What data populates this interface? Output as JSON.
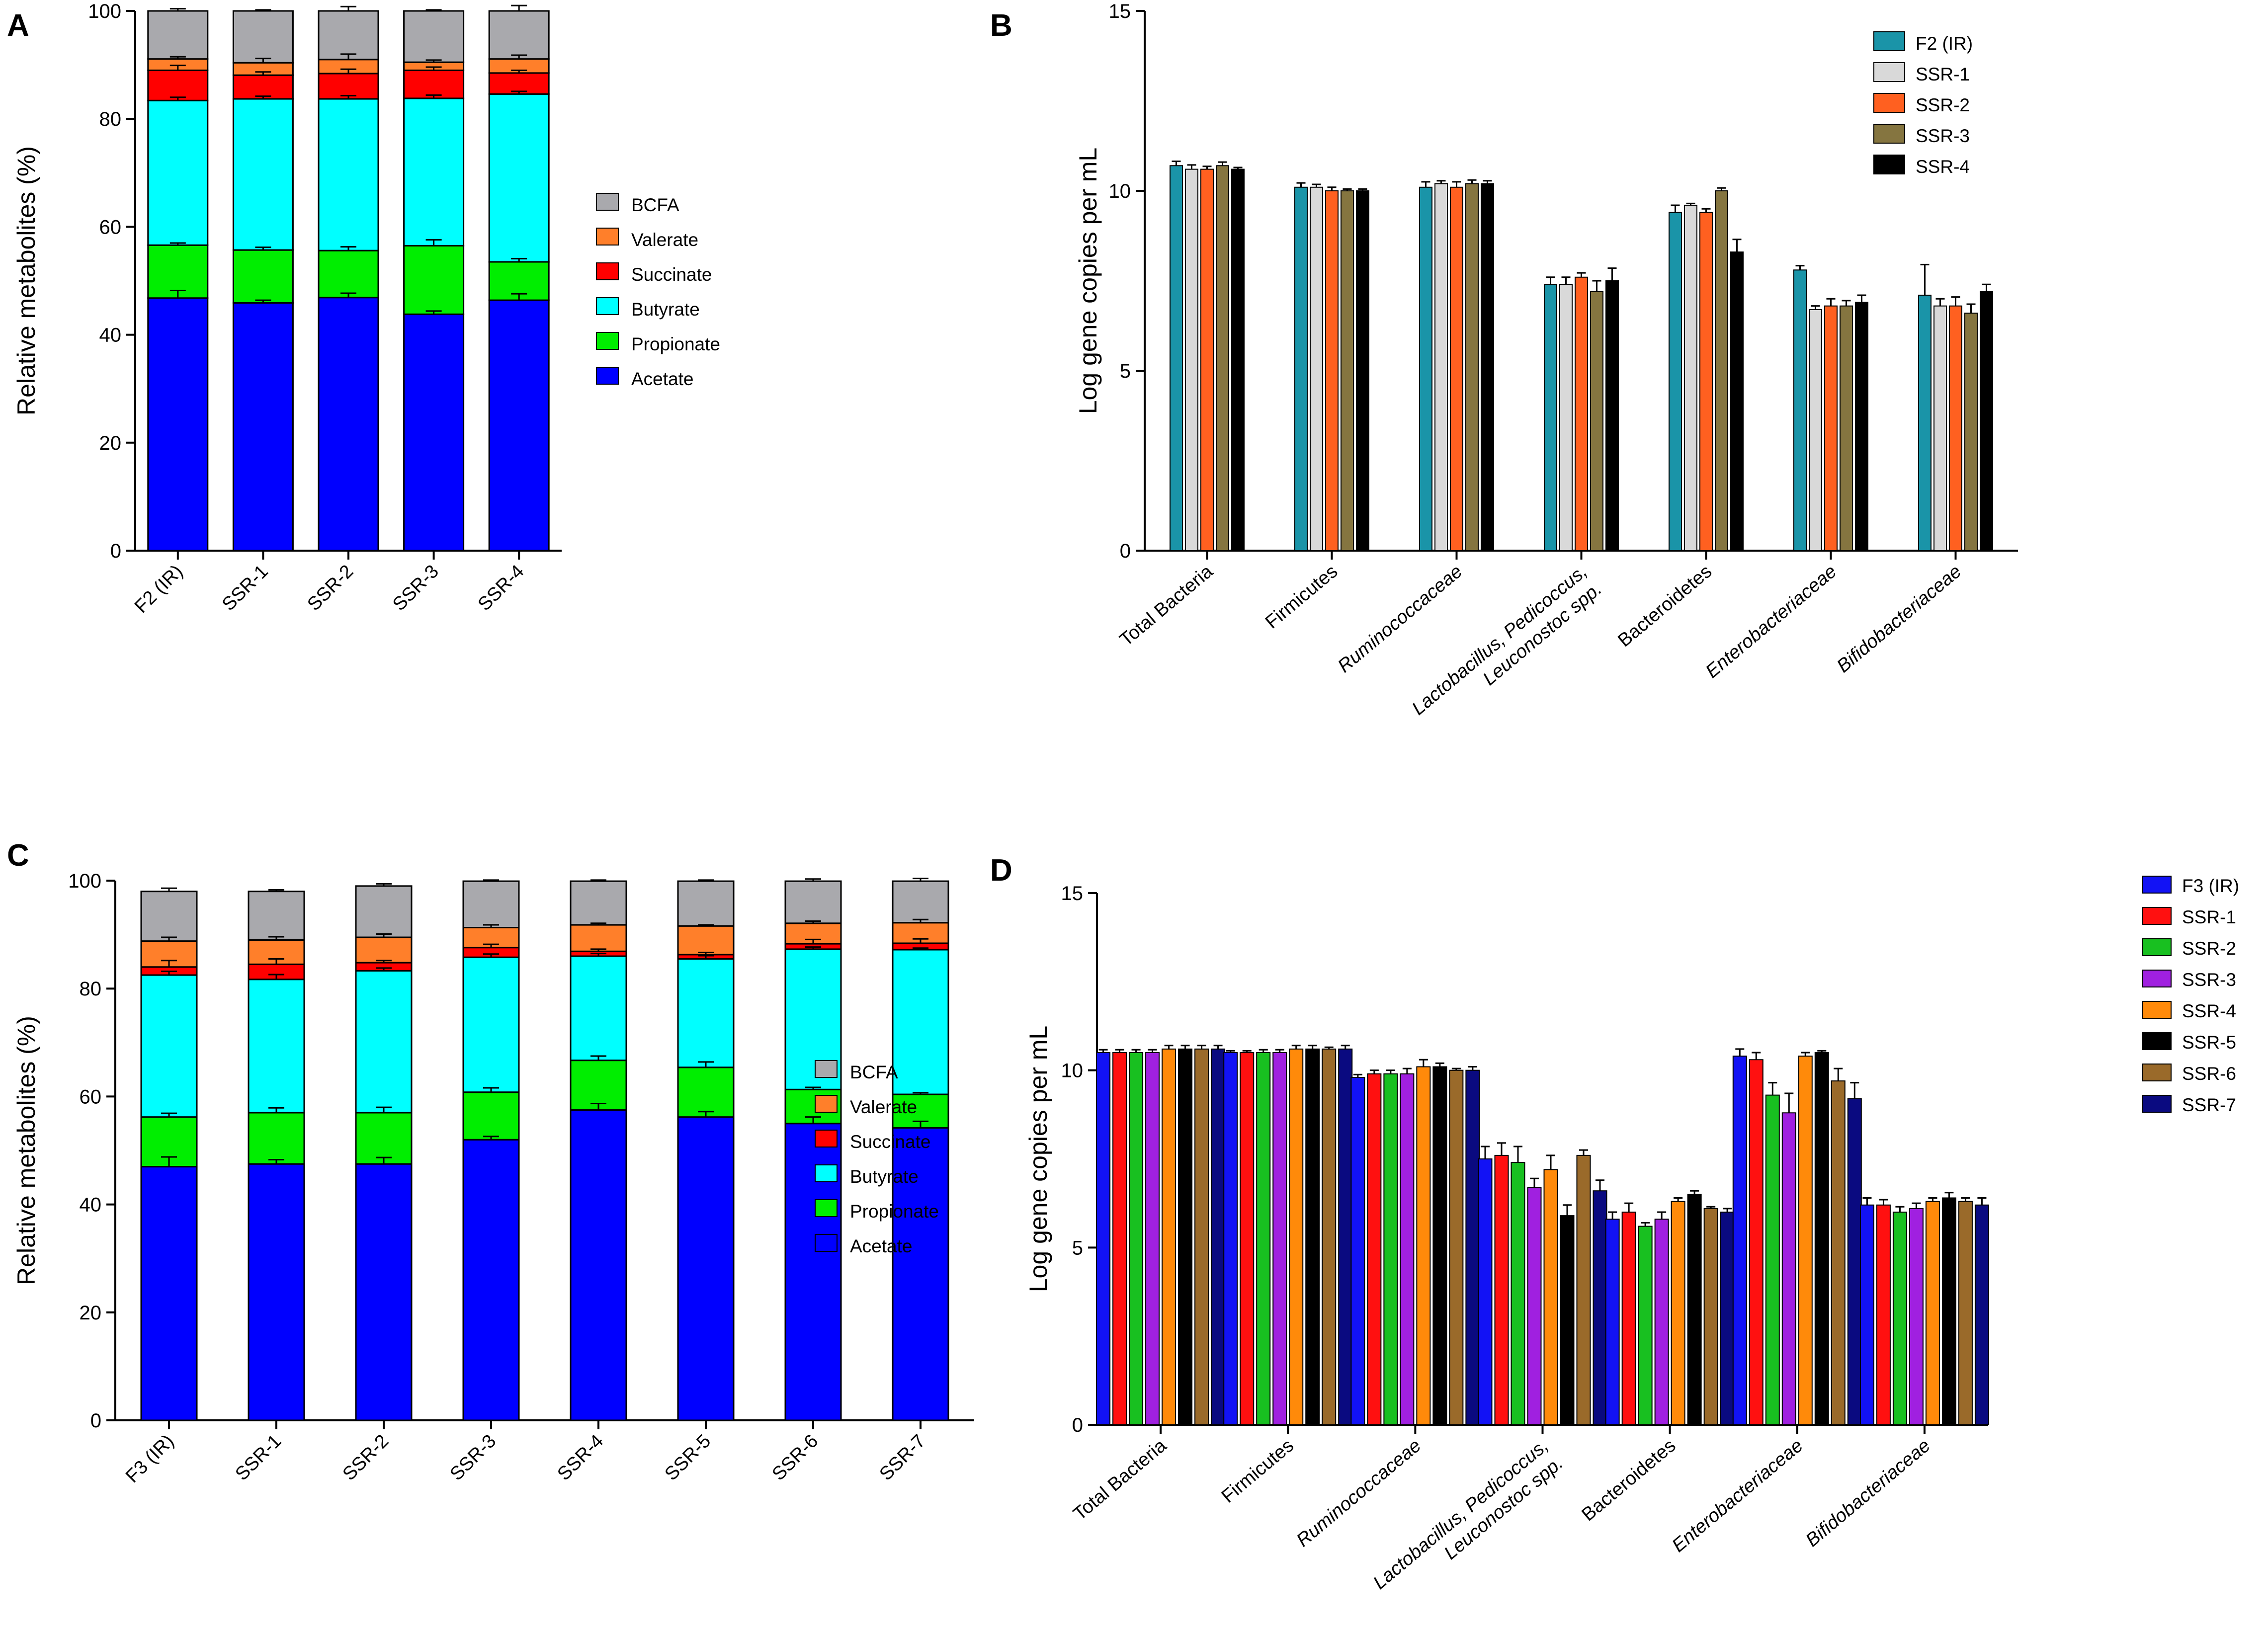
{
  "chart_data": [
    {
      "id": "A",
      "type": "stacked_bar",
      "panel_label": "A",
      "title": "",
      "ylabel": "Relative metabolites (%)",
      "xlabel": "",
      "ylim": [
        0,
        100
      ],
      "yticks": [
        0,
        20,
        40,
        60,
        80,
        100
      ],
      "grid": false,
      "legend_position": "right",
      "categories": [
        "F2 (IR)",
        "SSR-1",
        "SSR-2",
        "SSR-3",
        "SSR-4"
      ],
      "series": [
        {
          "name": "Acetate",
          "color": "#0000FF",
          "values": [
            46.8,
            45.9,
            46.9,
            43.8,
            46.4
          ],
          "errors": [
            1.4,
            0.5,
            0.8,
            0.6,
            1.2
          ]
        },
        {
          "name": "Propionate",
          "color": "#00EE00",
          "values": [
            9.8,
            9.8,
            8.7,
            12.7,
            7.1
          ],
          "errors": [
            0.4,
            0.5,
            0.7,
            1.1,
            0.6
          ]
        },
        {
          "name": "Butyrate",
          "color": "#00FFFF",
          "values": [
            26.8,
            28.0,
            28.1,
            27.3,
            31.1
          ],
          "errors": [
            0.6,
            0.5,
            0.6,
            0.6,
            0.5
          ]
        },
        {
          "name": "Succinate",
          "color": "#FF0000",
          "values": [
            5.6,
            4.4,
            4.7,
            5.2,
            3.9
          ],
          "errors": [
            0.9,
            0.6,
            0.8,
            0.6,
            0.5
          ]
        },
        {
          "name": "Valerate",
          "color": "#FF7F2A",
          "values": [
            2.1,
            2.3,
            2.6,
            1.5,
            2.6
          ],
          "errors": [
            0.4,
            0.8,
            1.0,
            0.4,
            0.7
          ]
        },
        {
          "name": "BCFA",
          "color": "#A9A9AD",
          "values": [
            8.9,
            9.6,
            9.0,
            9.5,
            8.9
          ],
          "errors": [
            0.4,
            0.2,
            0.8,
            0.2,
            1.0
          ]
        }
      ],
      "legend_order": [
        "BCFA",
        "Valerate",
        "Succinate",
        "Butyrate",
        "Propionate",
        "Acetate"
      ]
    },
    {
      "id": "B",
      "type": "bar",
      "panel_label": "B",
      "title": "",
      "ylabel": "Log gene copies per mL",
      "xlabel": "",
      "ylim": [
        0,
        15
      ],
      "yticks": [
        0,
        5,
        10,
        15
      ],
      "grid": false,
      "legend_position": "top-right",
      "categories": [
        "Total Bacteria",
        "Firmicutes",
        "Ruminococcaceae",
        "Lactobacillus, Pedicoccus, Leuconostoc spp.",
        "Bacteroidetes",
        "Enterobacteriaceae",
        "Bifidobacteriaceae"
      ],
      "category_labels": [
        {
          "line1": "Total Bacteria",
          "line2": "",
          "italic": false
        },
        {
          "line1": "Firmicutes",
          "line2": "",
          "italic": false
        },
        {
          "line1": "Ruminococcaceae",
          "line2": "",
          "italic": true
        },
        {
          "line1": "Lactobacillus, Pedicoccus,",
          "line2": "Leuconostoc spp.",
          "italic": true
        },
        {
          "line1": "Bacteroidetes",
          "line2": "",
          "italic": false
        },
        {
          "line1": "Enterobacteriaceae",
          "line2": "",
          "italic": true
        },
        {
          "line1": "Bifidobacteriaceae",
          "line2": "",
          "italic": true
        }
      ],
      "series": [
        {
          "name": "F2 (IR)",
          "color": "#1A94A8",
          "values": [
            10.7,
            10.1,
            10.1,
            7.4,
            9.4,
            7.8,
            7.1
          ],
          "errors": [
            0.12,
            0.12,
            0.15,
            0.2,
            0.2,
            0.12,
            0.85
          ]
        },
        {
          "name": "SSR-1",
          "color": "#D9D9D9",
          "values": [
            10.6,
            10.1,
            10.2,
            7.4,
            9.6,
            6.7,
            6.8
          ],
          "errors": [
            0.12,
            0.08,
            0.08,
            0.2,
            0.05,
            0.1,
            0.2
          ]
        },
        {
          "name": "SSR-2",
          "color": "#FF6020",
          "values": [
            10.6,
            10.0,
            10.1,
            7.6,
            9.4,
            6.8,
            6.8
          ],
          "errors": [
            0.08,
            0.1,
            0.15,
            0.12,
            0.1,
            0.2,
            0.25
          ]
        },
        {
          "name": "SSR-3",
          "color": "#857540",
          "values": [
            10.7,
            10.0,
            10.2,
            7.2,
            10.0,
            6.8,
            6.6
          ],
          "errors": [
            0.1,
            0.05,
            0.1,
            0.3,
            0.08,
            0.15,
            0.25
          ]
        },
        {
          "name": "SSR-4",
          "color": "#000000",
          "values": [
            10.6,
            10.0,
            10.2,
            7.5,
            8.3,
            6.9,
            7.2
          ],
          "errors": [
            0.05,
            0.05,
            0.08,
            0.35,
            0.35,
            0.2,
            0.2
          ]
        }
      ]
    },
    {
      "id": "C",
      "type": "stacked_bar",
      "panel_label": "C",
      "title": "",
      "ylabel": "Relative metabolites (%)",
      "xlabel": "",
      "ylim": [
        0,
        100
      ],
      "yticks": [
        0,
        20,
        40,
        60,
        80,
        100
      ],
      "grid": false,
      "legend_position": "right",
      "categories": [
        "F3 (IR)",
        "SSR-1",
        "SSR-2",
        "SSR-3",
        "SSR-4",
        "SSR-5",
        "SSR-6",
        "SSR-7"
      ],
      "series": [
        {
          "name": "Acetate",
          "color": "#0000FF",
          "values": [
            47.0,
            47.5,
            47.5,
            52.0,
            57.5,
            56.2,
            55.0,
            54.2
          ],
          "errors": [
            1.8,
            0.8,
            1.2,
            0.6,
            1.2,
            1.0,
            1.2,
            1.2
          ]
        },
        {
          "name": "Propionate",
          "color": "#00EE00",
          "values": [
            9.2,
            9.5,
            9.5,
            8.8,
            9.2,
            9.2,
            6.3,
            6.2
          ],
          "errors": [
            0.7,
            0.9,
            1.0,
            0.8,
            0.8,
            1.0,
            0.4,
            0.3
          ]
        },
        {
          "name": "Butyrate",
          "color": "#00FFFF",
          "values": [
            26.3,
            24.7,
            26.3,
            25.0,
            19.3,
            20.1,
            26.0,
            26.8
          ],
          "errors": [
            0.7,
            0.9,
            0.5,
            0.6,
            0.5,
            0.6,
            0.4,
            0.3
          ]
        },
        {
          "name": "Succinate",
          "color": "#FF0000",
          "values": [
            1.5,
            2.8,
            1.5,
            1.8,
            0.9,
            0.8,
            1.0,
            1.2
          ],
          "errors": [
            1.2,
            1.0,
            0.4,
            0.6,
            0.4,
            0.4,
            0.8,
            0.8
          ]
        },
        {
          "name": "Valerate",
          "color": "#FF7F2A",
          "values": [
            4.8,
            4.5,
            4.7,
            3.7,
            4.9,
            5.3,
            3.8,
            3.8
          ],
          "errors": [
            0.7,
            0.6,
            0.6,
            0.5,
            0.3,
            0.2,
            0.4,
            0.6
          ]
        },
        {
          "name": "BCFA",
          "color": "#A9A9AD",
          "values": [
            9.2,
            9.0,
            9.5,
            8.6,
            8.1,
            8.3,
            7.8,
            7.7
          ],
          "errors": [
            0.6,
            0.3,
            0.4,
            0.2,
            0.2,
            0.2,
            0.4,
            0.5
          ]
        }
      ],
      "legend_order": [
        "BCFA",
        "Valerate",
        "Succinate",
        "Butyrate",
        "Propionate",
        "Acetate"
      ]
    },
    {
      "id": "D",
      "type": "bar",
      "panel_label": "D",
      "title": "",
      "ylabel": "Log gene copies per mL",
      "xlabel": "",
      "ylim": [
        0,
        15
      ],
      "yticks": [
        0,
        5,
        10,
        15
      ],
      "grid": false,
      "legend_position": "top-right",
      "categories": [
        "Total Bacteria",
        "Firmicutes",
        "Ruminococcaceae",
        "Lactobacillus, Pedicoccus, Leuconostoc spp.",
        "Bacteroidetes",
        "Enterobacteriaceae",
        "Bifidobacteriaceae"
      ],
      "category_labels": [
        {
          "line1": "Total Bacteria",
          "line2": "",
          "italic": false
        },
        {
          "line1": "Firmicutes",
          "line2": "",
          "italic": false
        },
        {
          "line1": "Ruminococcaceae",
          "line2": "",
          "italic": true
        },
        {
          "line1": "Lactobacillus, Pedicoccus,",
          "line2": "Leuconostoc spp.",
          "italic": true
        },
        {
          "line1": "Bacteroidetes",
          "line2": "",
          "italic": false
        },
        {
          "line1": "Enterobacteriaceae",
          "line2": "",
          "italic": true
        },
        {
          "line1": "Bifidobacteriaceae",
          "line2": "",
          "italic": true
        }
      ],
      "series": [
        {
          "name": "F3 (IR)",
          "color": "#1212F5",
          "values": [
            10.5,
            10.5,
            9.8,
            7.5,
            5.8,
            10.4,
            6.2
          ],
          "errors": [
            0.08,
            0.05,
            0.08,
            0.35,
            0.2,
            0.2,
            0.2
          ]
        },
        {
          "name": "SSR-1",
          "color": "#FF1010",
          "values": [
            10.5,
            10.5,
            9.9,
            7.6,
            6.0,
            10.3,
            6.2
          ],
          "errors": [
            0.08,
            0.05,
            0.1,
            0.35,
            0.25,
            0.2,
            0.15
          ]
        },
        {
          "name": "SSR-2",
          "color": "#18C020",
          "values": [
            10.5,
            10.5,
            9.9,
            7.4,
            5.6,
            9.3,
            6.0
          ],
          "errors": [
            0.08,
            0.08,
            0.1,
            0.45,
            0.1,
            0.35,
            0.15
          ]
        },
        {
          "name": "SSR-3",
          "color": "#A020E0",
          "values": [
            10.5,
            10.5,
            9.9,
            6.7,
            5.8,
            8.8,
            6.1
          ],
          "errors": [
            0.08,
            0.08,
            0.15,
            0.25,
            0.2,
            0.55,
            0.15
          ]
        },
        {
          "name": "SSR-4",
          "color": "#FF8A0A",
          "values": [
            10.6,
            10.6,
            10.1,
            7.2,
            6.3,
            10.4,
            6.3
          ],
          "errors": [
            0.1,
            0.1,
            0.2,
            0.4,
            0.1,
            0.1,
            0.1
          ]
        },
        {
          "name": "SSR-5",
          "color": "#000000",
          "values": [
            10.6,
            10.6,
            10.1,
            5.9,
            6.5,
            10.5,
            6.4
          ],
          "errors": [
            0.1,
            0.1,
            0.1,
            0.3,
            0.1,
            0.05,
            0.15
          ]
        },
        {
          "name": "SSR-6",
          "color": "#9A6A2A",
          "values": [
            10.6,
            10.6,
            10.0,
            7.6,
            6.1,
            9.7,
            6.3
          ],
          "errors": [
            0.1,
            0.05,
            0.05,
            0.15,
            0.05,
            0.35,
            0.1
          ]
        },
        {
          "name": "SSR-7",
          "color": "#0A0A80",
          "values": [
            10.6,
            10.6,
            10.0,
            6.6,
            6.0,
            9.2,
            6.2
          ],
          "errors": [
            0.1,
            0.1,
            0.1,
            0.3,
            0.1,
            0.45,
            0.2
          ]
        }
      ]
    }
  ]
}
